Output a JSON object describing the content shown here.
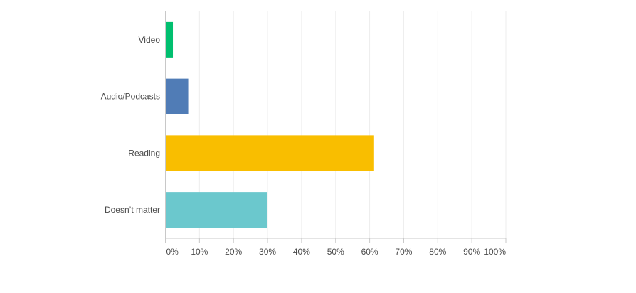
{
  "chart_data": {
    "type": "bar",
    "orientation": "horizontal",
    "categories": [
      "Video",
      "Audio/Podcasts",
      "Reading",
      "Doesn’t matter"
    ],
    "values": [
      2.2,
      6.7,
      61.3,
      29.8
    ],
    "colors": [
      "#00bf6f",
      "#507cb6",
      "#f9be00",
      "#6bc8cd"
    ],
    "xlim": [
      0,
      100
    ],
    "xticks": [
      "0%",
      "10%",
      "20%",
      "30%",
      "40%",
      "50%",
      "60%",
      "70%",
      "80%",
      "90%",
      "100%"
    ],
    "grid": true,
    "grid_color": "#ededed",
    "axis_color": "#c8c8c8"
  }
}
